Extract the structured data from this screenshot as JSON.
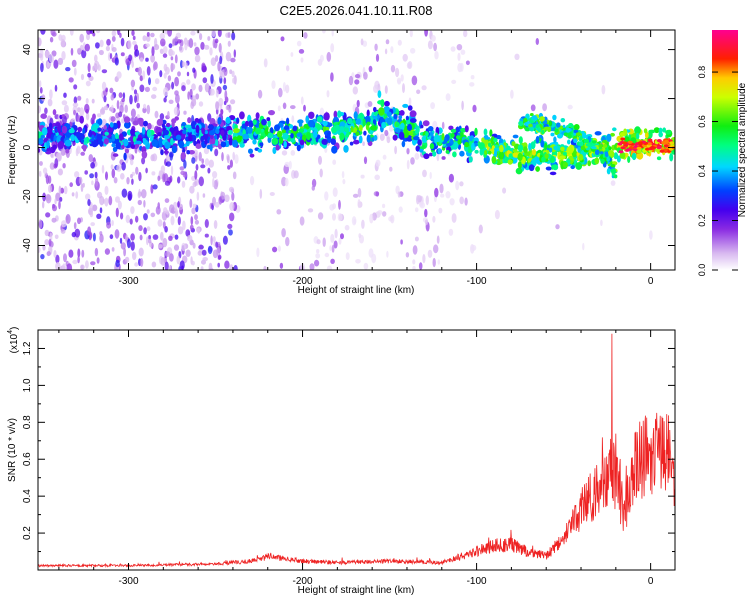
{
  "title": "C2E5.2026.041.10.11.R08",
  "chart_data": [
    {
      "type": "heatmap",
      "xlabel": "Height of straight line (km)",
      "ylabel": "Frequency (Hz)",
      "xlim": [
        -352,
        14
      ],
      "ylim": [
        -50,
        48
      ],
      "xticks": [
        -300,
        -200,
        -100,
        0
      ],
      "yticks": [
        -40,
        -20,
        0,
        20,
        40
      ],
      "colorbar": {
        "label": "Normalized spectral amplitude",
        "range": [
          0.0,
          0.97
        ],
        "ticks": [
          0.0,
          0.2,
          0.4,
          0.6,
          0.8
        ],
        "tick_labels": [
          "0.0",
          "0.2",
          "0.4",
          "0.6",
          "0.8"
        ],
        "colormap": "rainbow (white - violet - blue - cyan - green - yellow - red - magenta)"
      },
      "ridge": {
        "description": "dominant spectral ridge frequency vs height",
        "x": [
          -350,
          -300,
          -250,
          -200,
          -160,
          -155,
          -130,
          -100,
          -80,
          -60,
          -40,
          -20,
          0,
          10
        ],
        "y": [
          5,
          4,
          6,
          6,
          8,
          15,
          3,
          2,
          -3,
          -3,
          -3,
          1,
          1,
          1
        ]
      },
      "upper_branch": {
        "x": [
          -75,
          -60,
          -40,
          -25,
          -20
        ],
        "y": [
          10,
          9,
          5,
          -5,
          -10
        ]
      }
    },
    {
      "type": "line",
      "xlabel": "Height of straight line (km)",
      "ylabel": "SNR (10 * v/v)",
      "exponent_label": "(x10",
      "exponent_power": "4",
      "exponent_close": ")",
      "xlim": [
        -352,
        14
      ],
      "ylim": [
        0,
        1.3
      ],
      "xticks": [
        -300,
        -200,
        -100,
        0
      ],
      "yticks": [
        0.2,
        0.4,
        0.6,
        0.8,
        1.0,
        1.2
      ],
      "ytick_labels": [
        "0.2",
        "0.4",
        "0.6",
        "0.8",
        "1.0",
        "1.2"
      ],
      "series": [
        {
          "color": "#ee2222",
          "x": [
            -350,
            -300,
            -250,
            -230,
            -220,
            -200,
            -180,
            -150,
            -120,
            -105,
            -90,
            -80,
            -70,
            -60,
            -50,
            -40,
            -30,
            -25,
            -20,
            -15,
            -10,
            -5,
            0,
            5,
            10,
            13
          ],
          "y": [
            0.03,
            0.03,
            0.04,
            0.06,
            0.09,
            0.06,
            0.05,
            0.06,
            0.05,
            0.11,
            0.17,
            0.18,
            0.12,
            0.1,
            0.22,
            0.45,
            0.62,
            0.75,
            0.7,
            0.4,
            0.75,
            0.82,
            0.9,
            0.85,
            0.9,
            0.6
          ]
        }
      ]
    }
  ]
}
